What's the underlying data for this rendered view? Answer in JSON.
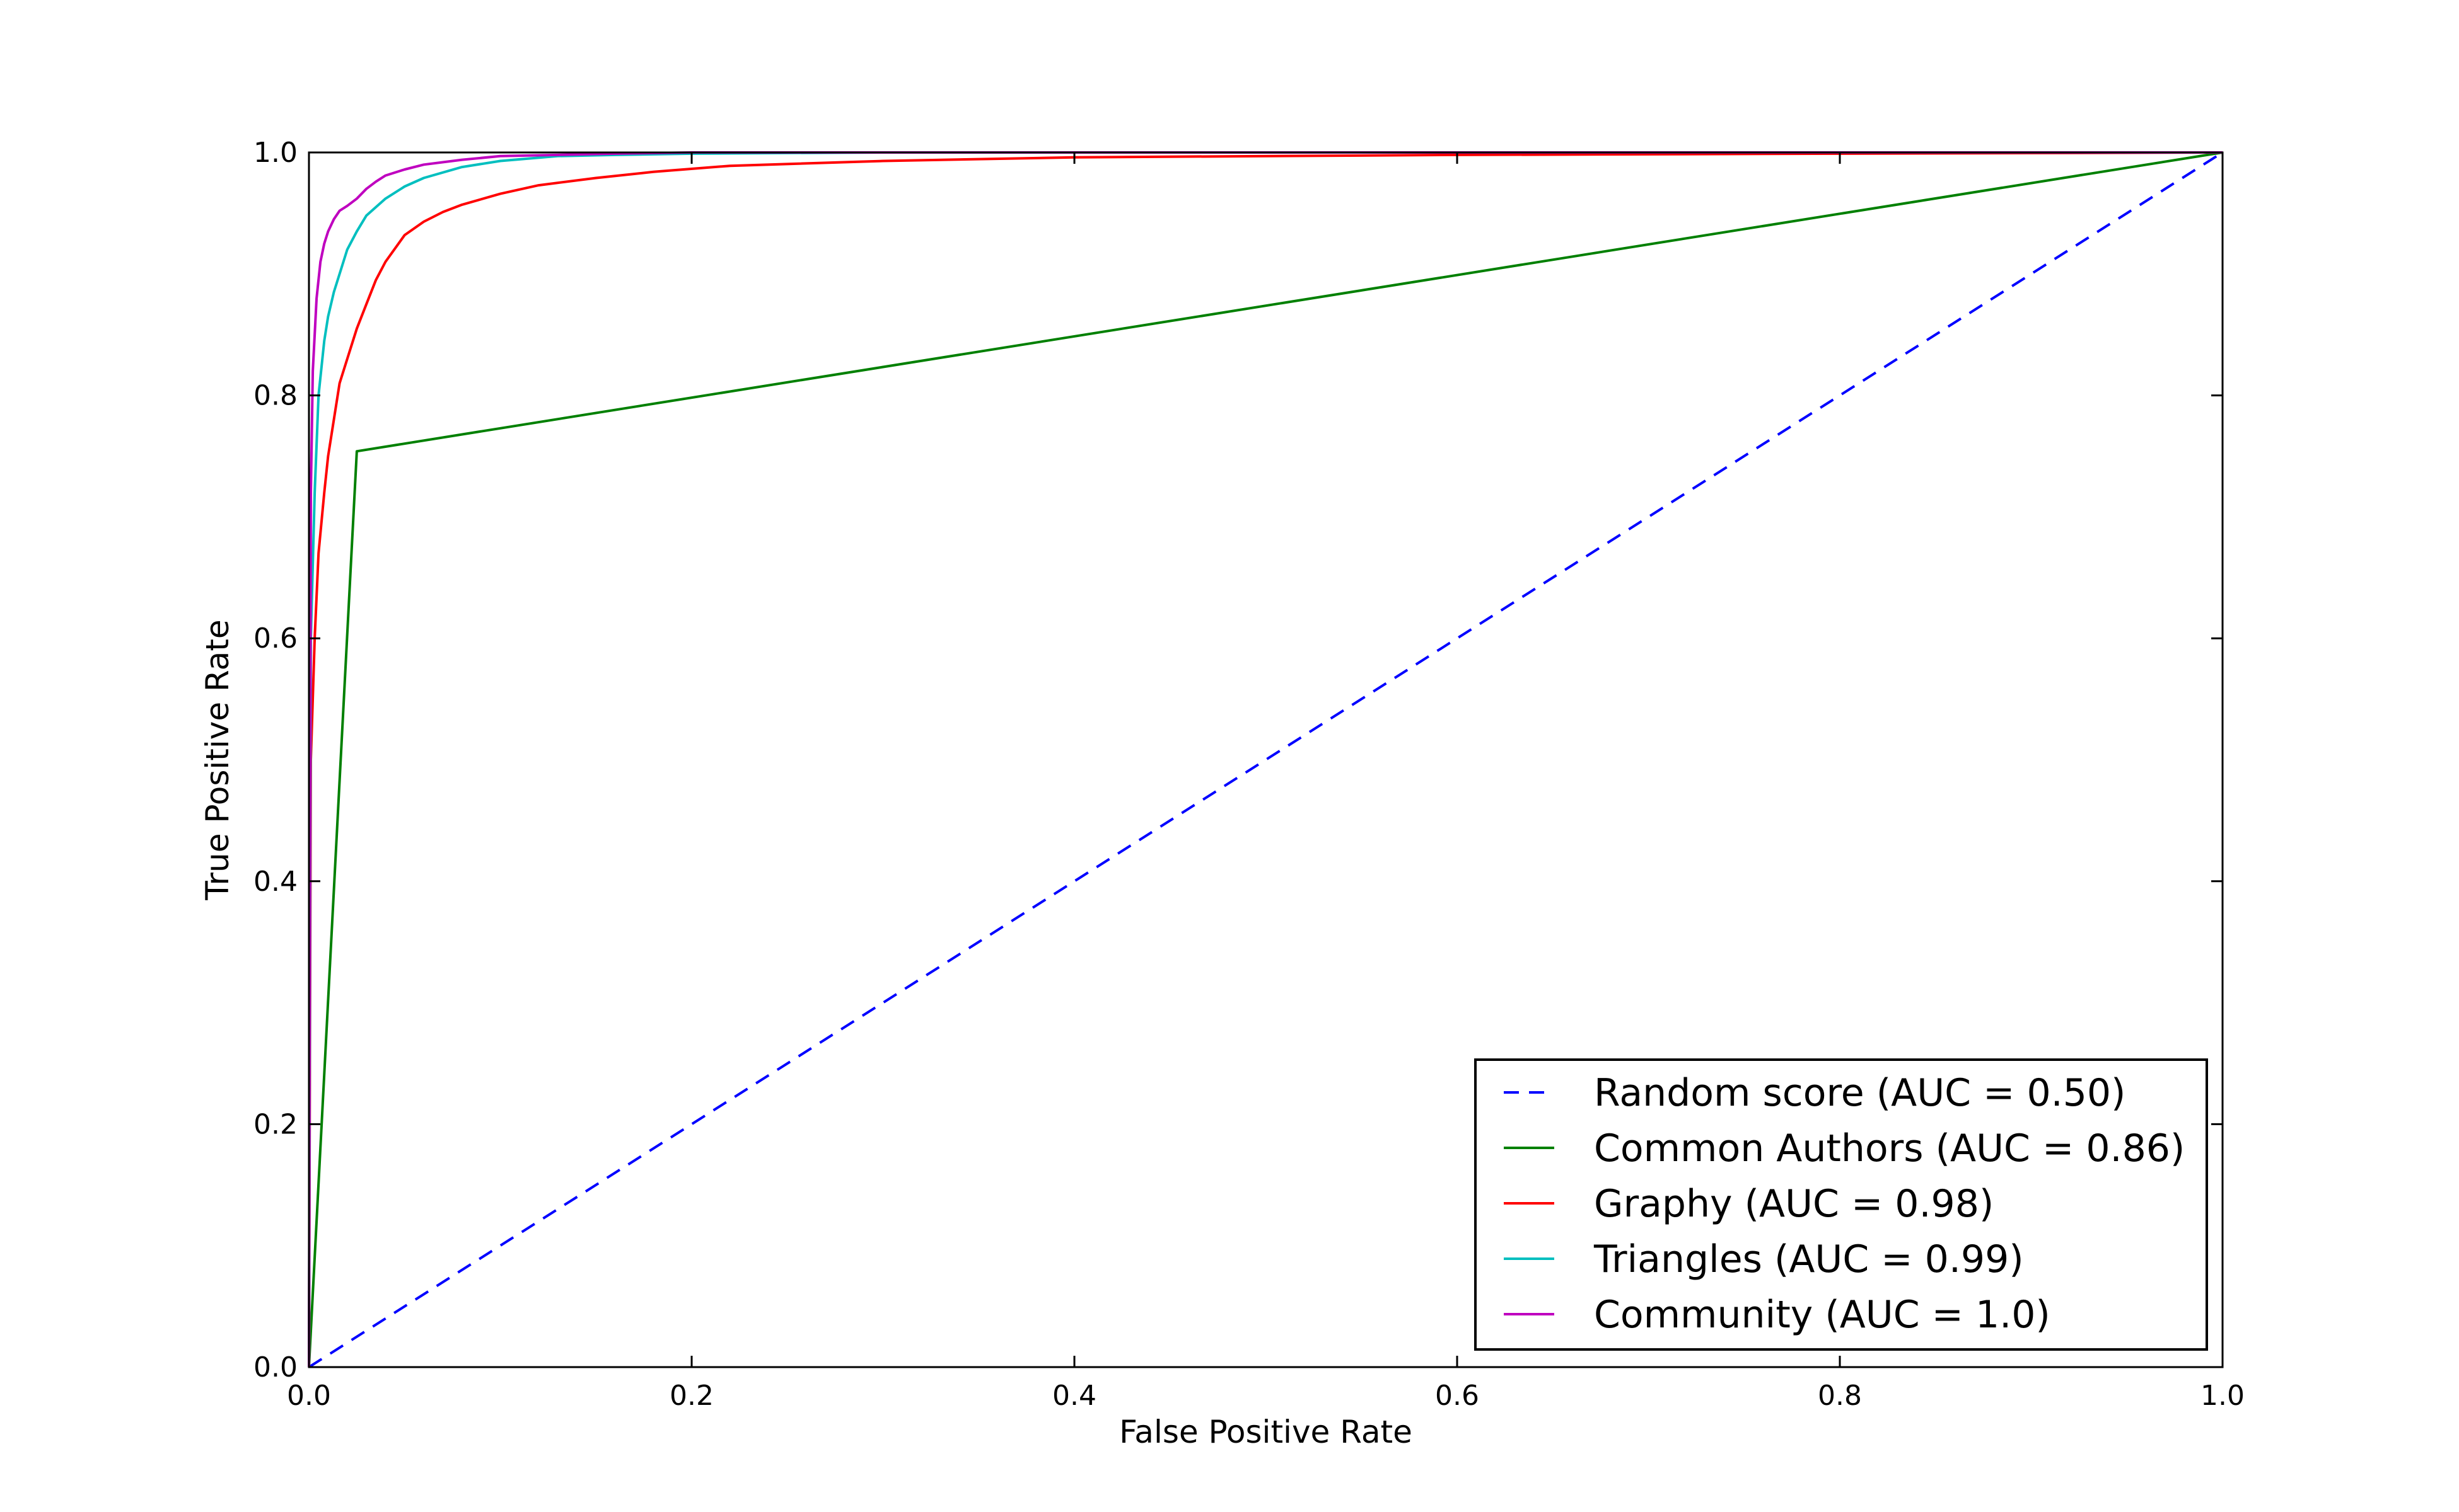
{
  "chart_data": {
    "type": "line",
    "title": "",
    "xlabel": "False Positive Rate",
    "ylabel": "True Positive Rate",
    "xlim": [
      0.0,
      1.0
    ],
    "ylim": [
      0.0,
      1.0
    ],
    "xticks": [
      "0.0",
      "0.2",
      "0.4",
      "0.6",
      "0.8",
      "1.0"
    ],
    "yticks": [
      "0.0",
      "0.2",
      "0.4",
      "0.6",
      "0.8",
      "1.0"
    ],
    "grid": false,
    "legend_position": "lower-right",
    "series": [
      {
        "name": "Random score (AUC = 0.50)",
        "color": "#0000ff",
        "style": "dashed",
        "x": [
          0.0,
          1.0
        ],
        "y": [
          0.0,
          1.0
        ]
      },
      {
        "name": "Common Authors (AUC = 0.86)",
        "color": "#008000",
        "style": "solid",
        "x": [
          0.0,
          0.025,
          1.0
        ],
        "y": [
          0.0,
          0.754,
          1.0
        ]
      },
      {
        "name": "Graphy (AUC = 0.98)",
        "color": "#ff0000",
        "style": "solid",
        "x": [
          0.0,
          0.001,
          0.003,
          0.005,
          0.008,
          0.01,
          0.013,
          0.016,
          0.02,
          0.025,
          0.03,
          0.035,
          0.04,
          0.05,
          0.06,
          0.07,
          0.08,
          0.1,
          0.12,
          0.15,
          0.18,
          0.22,
          0.3,
          0.4,
          0.6,
          0.8,
          1.0
        ],
        "y": [
          0.0,
          0.5,
          0.6,
          0.67,
          0.72,
          0.75,
          0.78,
          0.81,
          0.83,
          0.855,
          0.875,
          0.895,
          0.91,
          0.932,
          0.943,
          0.951,
          0.957,
          0.966,
          0.973,
          0.979,
          0.984,
          0.989,
          0.993,
          0.996,
          0.998,
          0.999,
          1.0
        ]
      },
      {
        "name": "Triangles (AUC = 0.99)",
        "color": "#00bfbf",
        "style": "solid",
        "x": [
          0.0,
          0.001,
          0.003,
          0.005,
          0.008,
          0.01,
          0.013,
          0.017,
          0.02,
          0.025,
          0.03,
          0.04,
          0.05,
          0.06,
          0.08,
          0.1,
          0.13,
          0.16,
          0.2,
          0.3,
          0.5,
          1.0
        ],
        "y": [
          0.0,
          0.6,
          0.72,
          0.8,
          0.845,
          0.865,
          0.885,
          0.905,
          0.92,
          0.935,
          0.948,
          0.962,
          0.972,
          0.979,
          0.988,
          0.993,
          0.997,
          0.998,
          0.999,
          1.0,
          1.0,
          1.0
        ]
      },
      {
        "name": "Community (AUC = 1.0)",
        "color": "#bf00bf",
        "style": "solid",
        "x": [
          0.0,
          0.001,
          0.002,
          0.004,
          0.006,
          0.008,
          0.01,
          0.013,
          0.016,
          0.02,
          0.025,
          0.03,
          0.035,
          0.04,
          0.05,
          0.06,
          0.08,
          0.1,
          0.13,
          0.16,
          0.2,
          0.3,
          1.0
        ],
        "y": [
          0.0,
          0.72,
          0.82,
          0.88,
          0.91,
          0.925,
          0.935,
          0.945,
          0.952,
          0.956,
          0.962,
          0.97,
          0.976,
          0.981,
          0.986,
          0.99,
          0.994,
          0.997,
          0.998,
          0.999,
          1.0,
          1.0,
          1.0
        ]
      }
    ]
  }
}
